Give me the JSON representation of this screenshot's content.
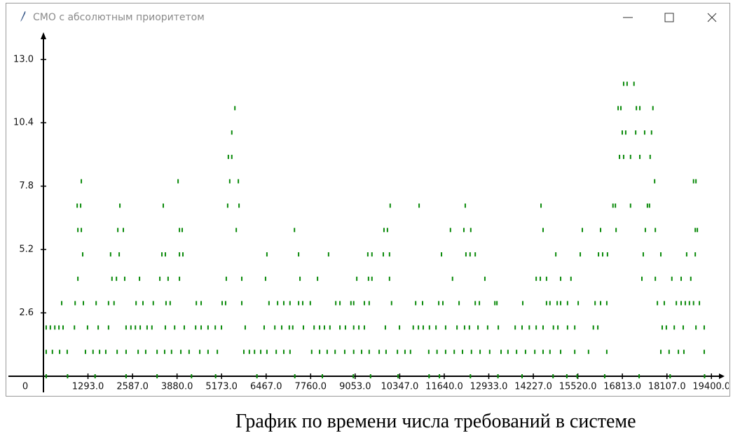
{
  "window": {
    "title": "СМО с абсолютным приоритетом"
  },
  "caption": "График по времени числа требований в системе",
  "chart_data": {
    "type": "scatter",
    "color": "#0a8a0a",
    "xlim": [
      0,
      19700
    ],
    "ylim": [
      0,
      14
    ],
    "xticks": [
      0,
      {
        "value": 1293,
        "label": "1293.0"
      },
      {
        "value": 2587,
        "label": "2587.0"
      },
      {
        "value": 3880,
        "label": "3880.0"
      },
      {
        "value": 5173,
        "label": "5173.0"
      },
      {
        "value": 6467,
        "label": "6467.0"
      },
      {
        "value": 7760,
        "label": "7760.0"
      },
      {
        "value": 9053,
        "label": "9053.0"
      },
      {
        "value": 10347,
        "label": "10347.0"
      },
      {
        "value": 11640,
        "label": "11640.0"
      },
      {
        "value": 12933,
        "label": "12933.0"
      },
      {
        "value": 14227,
        "label": "14227.0"
      },
      {
        "value": 15520,
        "label": "15520.0"
      },
      {
        "value": 16813,
        "label": "16813.0"
      },
      {
        "value": 18107,
        "label": "18107.0"
      },
      {
        "value": 19400,
        "label": "19400.0"
      }
    ],
    "yticks": [
      2.6,
      5.2,
      7.8,
      10.4,
      {
        "value": 13,
        "label": "13.0"
      }
    ],
    "series": [
      {
        "x": [
          16850,
          16950,
          17150
        ],
        "values": [
          12,
          12,
          12
        ]
      },
      {
        "x": [
          5560,
          16690,
          16770,
          17220,
          17320,
          17700
        ],
        "values": [
          11,
          11,
          11,
          11,
          11,
          11
        ]
      },
      {
        "x": [
          5470,
          16810,
          16910,
          17200,
          17460,
          17660
        ],
        "values": [
          10,
          10,
          10,
          10,
          10,
          10
        ]
      },
      {
        "x": [
          5370,
          5470,
          16730,
          16850,
          17050,
          17320,
          17620
        ],
        "values": [
          9,
          9,
          9,
          9,
          9,
          9,
          9
        ]
      },
      {
        "x": [
          1100,
          3910,
          5410,
          5660,
          17750,
          18880,
          18950
        ],
        "values": [
          8,
          8,
          8,
          8,
          8,
          8,
          8
        ]
      },
      {
        "x": [
          980,
          1080,
          2220,
          3480,
          5350,
          5680,
          10070,
          10910,
          12250,
          14450,
          16540,
          16610,
          17050,
          17540,
          17600
        ],
        "values": [
          7,
          7,
          7,
          7,
          7,
          7,
          7,
          7,
          7,
          7,
          7,
          7,
          7,
          7,
          7
        ]
      },
      {
        "x": [
          1000,
          1100,
          2160,
          2320,
          3950,
          4030,
          5600,
          7290,
          9890,
          9990,
          11820,
          12210,
          12410,
          14510,
          15650,
          16180,
          16630,
          17480,
          17770,
          18930,
          18990
        ],
        "values": [
          6,
          6,
          6,
          6,
          6,
          6,
          6,
          6,
          6,
          6,
          6,
          6,
          6,
          6,
          6,
          6,
          6,
          6,
          6,
          6,
          6
        ]
      },
      {
        "x": [
          1140,
          1950,
          2200,
          3440,
          3540,
          3950,
          4050,
          6490,
          7410,
          8280,
          9420,
          9540,
          9870,
          10050,
          11560,
          12270,
          12390,
          12540,
          14880,
          15590,
          16120,
          16240,
          16380,
          17420,
          17930,
          18680,
          18930
        ],
        "values": [
          5,
          5,
          5,
          5,
          5,
          5,
          5,
          5,
          5,
          5,
          5,
          5,
          5,
          5,
          5,
          5,
          5,
          5,
          5,
          5,
          5,
          5,
          5,
          5,
          5,
          5,
          5
        ]
      },
      {
        "x": [
          1000,
          1990,
          2120,
          2360,
          2790,
          3380,
          3620,
          3950,
          5310,
          5760,
          6450,
          7450,
          7960,
          9100,
          9440,
          9540,
          10050,
          11880,
          12820,
          14310,
          14430,
          14610,
          15020,
          15320,
          17380,
          17770,
          18250,
          18520,
          18800
        ],
        "values": [
          4,
          4,
          4,
          4,
          4,
          4,
          4,
          4,
          4,
          4,
          4,
          4,
          4,
          4,
          4,
          4,
          4,
          4,
          4,
          4,
          4,
          4,
          4,
          4,
          4,
          4,
          4,
          4,
          4
        ]
      },
      {
        "x": [
          530,
          920,
          1160,
          1530,
          1890,
          2050,
          2690,
          2890,
          3190,
          3560,
          3680,
          4440,
          4580,
          5190,
          5290,
          5760,
          6550,
          6800,
          6980,
          7160,
          7410,
          7530,
          7750,
          8490,
          8610,
          8930,
          9010,
          9320,
          9460,
          10110,
          10810,
          11010,
          11480,
          11600,
          12070,
          12540,
          12660,
          13110,
          13170,
          13920,
          14610,
          14710,
          14920,
          15020,
          15220,
          15530,
          16020,
          16180,
          16360,
          17830,
          18030,
          18380,
          18520,
          18640,
          18760,
          18880,
          19050
        ],
        "values": [
          3,
          3,
          3,
          3,
          3,
          3,
          3,
          3,
          3,
          3,
          3,
          3,
          3,
          3,
          3,
          3,
          3,
          3,
          3,
          3,
          3,
          3,
          3,
          3,
          3,
          3,
          3,
          3,
          3,
          3,
          3,
          3,
          3,
          3,
          3,
          3,
          3,
          3,
          3,
          3,
          3,
          3,
          3,
          3,
          3,
          3,
          3,
          3,
          3,
          3,
          3,
          3,
          3,
          3,
          3,
          3,
          3
        ]
      },
      {
        "x": [
          80,
          200,
          330,
          450,
          570,
          900,
          1280,
          1590,
          1890,
          2400,
          2540,
          2670,
          2810,
          3010,
          3150,
          3540,
          3810,
          4090,
          4420,
          4580,
          4780,
          4990,
          5170,
          5860,
          6410,
          6720,
          6920,
          7140,
          7240,
          7550,
          7860,
          8020,
          8160,
          8320,
          8610,
          8770,
          9010,
          9160,
          9320,
          9930,
          10340,
          10740,
          10890,
          11030,
          11210,
          11400,
          11680,
          12010,
          12230,
          12370,
          12620,
          12900,
          13210,
          13700,
          13900,
          14110,
          14310,
          14510,
          14810,
          14940,
          15220,
          15430,
          15970,
          16100,
          17970,
          18090,
          18320,
          18580,
          18950,
          19190
        ],
        "values": [
          2,
          2,
          2,
          2,
          2,
          2,
          2,
          2,
          2,
          2,
          2,
          2,
          2,
          2,
          2,
          2,
          2,
          2,
          2,
          2,
          2,
          2,
          2,
          2,
          2,
          2,
          2,
          2,
          2,
          2,
          2,
          2,
          2,
          2,
          2,
          2,
          2,
          2,
          2,
          2,
          2,
          2,
          2,
          2,
          2,
          2,
          2,
          2,
          2,
          2,
          2,
          2,
          2,
          2,
          2,
          2,
          2,
          2,
          2,
          2,
          2,
          2,
          2,
          2,
          2,
          2,
          2,
          2,
          2,
          2
        ]
      },
      {
        "x": [
          80,
          260,
          470,
          690,
          1220,
          1440,
          1630,
          1810,
          2140,
          2400,
          2750,
          2970,
          3300,
          3520,
          3720,
          3990,
          4230,
          4540,
          4780,
          5050,
          5820,
          5980,
          6130,
          6310,
          6490,
          6760,
          6980,
          7160,
          7790,
          8020,
          8240,
          8470,
          8750,
          9010,
          9240,
          9460,
          9750,
          9950,
          10280,
          10500,
          10660,
          11190,
          11430,
          11680,
          11930,
          12170,
          12430,
          12680,
          12960,
          13290,
          13490,
          13740,
          14000,
          14270,
          14510,
          14710,
          15020,
          15430,
          15830,
          16360,
          17930,
          18170,
          18440,
          18600,
          19190
        ],
        "values": [
          1,
          1,
          1,
          1,
          1,
          1,
          1,
          1,
          1,
          1,
          1,
          1,
          1,
          1,
          1,
          1,
          1,
          1,
          1,
          1,
          1,
          1,
          1,
          1,
          1,
          1,
          1,
          1,
          1,
          1,
          1,
          1,
          1,
          1,
          1,
          1,
          1,
          1,
          1,
          1,
          1,
          1,
          1,
          1,
          1,
          1,
          1,
          1,
          1,
          1,
          1,
          1,
          1,
          1,
          1,
          1,
          1,
          1,
          1,
          1,
          1,
          1,
          1,
          1,
          1
        ]
      },
      {
        "x": [
          80,
          700,
          1500,
          2400,
          3300,
          4300,
          5000,
          6200,
          7300,
          8100,
          9000,
          9500,
          10300,
          11200,
          11500,
          12400,
          13200,
          13900,
          14800,
          15200,
          15500,
          16300,
          17300,
          18200,
          19200
        ],
        "values": [
          0,
          0,
          0,
          0,
          0,
          0,
          0,
          0,
          0,
          0,
          0,
          0,
          0,
          0,
          0,
          0,
          0,
          0,
          0,
          0,
          0,
          0,
          0,
          0,
          0
        ]
      }
    ]
  }
}
